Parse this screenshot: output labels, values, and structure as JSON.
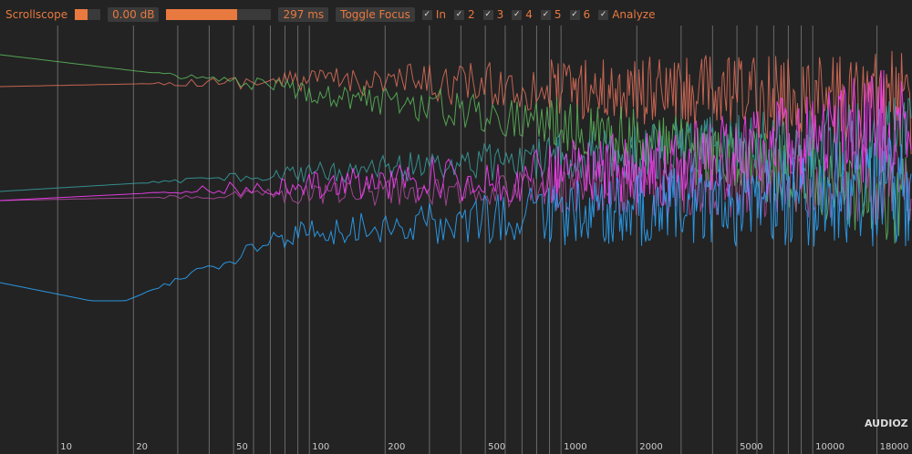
{
  "toolbar": {
    "title": "Scrollscope",
    "gain": "0.00 dB",
    "time": "297 ms",
    "toggle": "Toggle Focus",
    "checkboxes": [
      "In",
      "2",
      "3",
      "4",
      "5",
      "6",
      "Analyze"
    ]
  },
  "frequency_axis": {
    "scale": "log",
    "xlim": [
      5.9,
      24800
    ],
    "ticks": [
      10,
      20,
      50,
      100,
      200,
      500,
      1000,
      2000,
      5000,
      10000,
      18000
    ],
    "grid": [
      10,
      20,
      30,
      40,
      50,
      60,
      70,
      80,
      90,
      100,
      200,
      300,
      400,
      500,
      600,
      700,
      800,
      900,
      1000,
      2000,
      3000,
      4000,
      5000,
      6000,
      7000,
      8000,
      9000,
      10000,
      18000
    ]
  },
  "watermark": "AUDIOZ"
}
